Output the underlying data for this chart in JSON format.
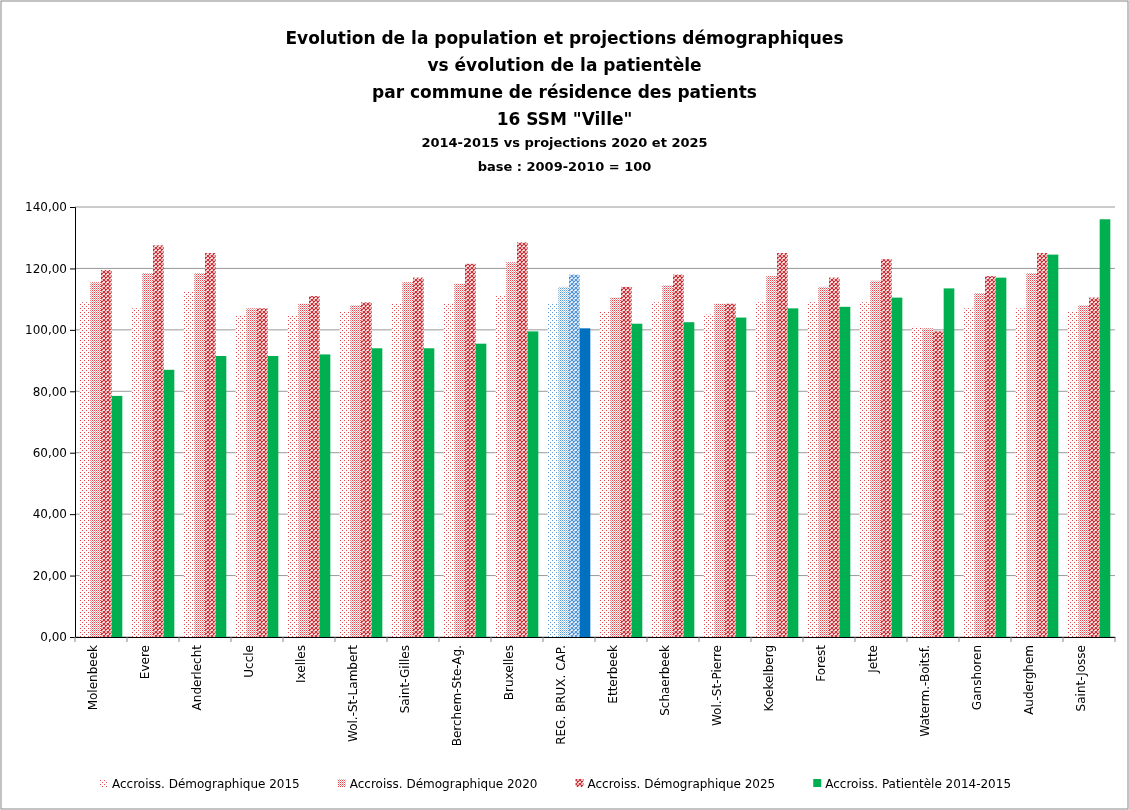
{
  "chart_data": {
    "type": "bar",
    "title": "Evolution de la population et projections démographiques\nvs évolution de la patientèle\npar commune de résidence des patients\n16 SSM \"Ville\"",
    "subtitle": "2014-2015 vs projections 2020 et 2025\nbase : 2009-2010 = 100",
    "categories": [
      "Molenbeek",
      "Evere",
      "Anderlecht",
      "Uccle",
      "Ixelles",
      "Wol.-St-Lambert",
      "Saint-Gilles",
      "Berchem-Ste-Ag.",
      "Bruxelles",
      "REG. BRUX. CAP.",
      "Etterbeek",
      "Schaerbeek",
      "Wol.-St-Pierre",
      "Koekelberg",
      "Forest",
      "Jette",
      "Waterm.-Boitsf.",
      "Ganshoren",
      "Auderghem",
      "Saint-Josse"
    ],
    "series": [
      {
        "name": "Accroiss. Démographique 2015",
        "color": "#e0474c",
        "colors": [
          "#e0474c",
          "#e0474c",
          "#e0474c",
          "#e0474c",
          "#e0474c",
          "#e0474c",
          "#e0474c",
          "#e0474c",
          "#e0474c",
          "#5b9bd5",
          "#e0474c",
          "#e0474c",
          "#e0474c",
          "#e0474c",
          "#e0474c",
          "#e0474c",
          "#e0474c",
          "#e0474c",
          "#e0474c",
          "#e0474c"
        ],
        "values": [
          109,
          107,
          112.5,
          104.5,
          104.5,
          106,
          108.5,
          108.5,
          111,
          108.5,
          106,
          109,
          105,
          109,
          109,
          109,
          101,
          107,
          107,
          106
        ]
      },
      {
        "name": "Accroiss. Démographique 2020",
        "color": "#e0474c",
        "colors": [
          "#e0474c",
          "#e0474c",
          "#e0474c",
          "#e0474c",
          "#e0474c",
          "#e0474c",
          "#e0474c",
          "#e0474c",
          "#e0474c",
          "#5b9bd5",
          "#e0474c",
          "#e0474c",
          "#e0474c",
          "#e0474c",
          "#e0474c",
          "#e0474c",
          "#e0474c",
          "#e0474c",
          "#e0474c",
          "#e0474c"
        ],
        "values": [
          115.5,
          118.5,
          118.5,
          107,
          108.5,
          108,
          115.5,
          115,
          122,
          114,
          110.5,
          114.5,
          108.5,
          117.5,
          114,
          116,
          100.5,
          112,
          118.5,
          108
        ]
      },
      {
        "name": "Accroiss. Démographique 2025",
        "color": "#d02a30",
        "colors": [
          "#d02a30",
          "#d02a30",
          "#d02a30",
          "#d02a30",
          "#d02a30",
          "#d02a30",
          "#d02a30",
          "#d02a30",
          "#d02a30",
          "#4a90d9",
          "#d02a30",
          "#d02a30",
          "#d02a30",
          "#d02a30",
          "#d02a30",
          "#d02a30",
          "#d02a30",
          "#d02a30",
          "#d02a30",
          "#d02a30"
        ],
        "values": [
          119.5,
          127.5,
          125,
          107,
          111,
          109,
          117,
          121.5,
          128.5,
          118,
          114,
          118,
          108.5,
          125,
          117,
          123,
          99.5,
          117.5,
          125,
          110.5
        ]
      },
      {
        "name": "Accroiss.  Patientèle 2014-2015",
        "color": "#00b050",
        "colors": [
          "#00b050",
          "#00b050",
          "#00b050",
          "#00b050",
          "#00b050",
          "#00b050",
          "#00b050",
          "#00b050",
          "#00b050",
          "#0070c0",
          "#00b050",
          "#00b050",
          "#00b050",
          "#00b050",
          "#00b050",
          "#00b050",
          "#00b050",
          "#00b050",
          "#00b050",
          "#00b050"
        ],
        "values": [
          78.5,
          87,
          91.5,
          91.5,
          92,
          94,
          94,
          95.5,
          99.5,
          100.5,
          102,
          102.5,
          104,
          107,
          107.5,
          110.5,
          113.5,
          117,
          124.5,
          136
        ]
      }
    ],
    "ylim": [
      0,
      140
    ],
    "yticks": [
      {
        "value": 0,
        "label": "0,00"
      },
      {
        "value": 20,
        "label": "20,00"
      },
      {
        "value": 40,
        "label": "40,00"
      },
      {
        "value": 60,
        "label": "60,00"
      },
      {
        "value": 80,
        "label": "80,00"
      },
      {
        "value": 100,
        "label": "100,00"
      },
      {
        "value": 120,
        "label": "120,00"
      },
      {
        "value": 140,
        "label": "140,00"
      }
    ],
    "grid": "y",
    "legend": "bottom"
  }
}
